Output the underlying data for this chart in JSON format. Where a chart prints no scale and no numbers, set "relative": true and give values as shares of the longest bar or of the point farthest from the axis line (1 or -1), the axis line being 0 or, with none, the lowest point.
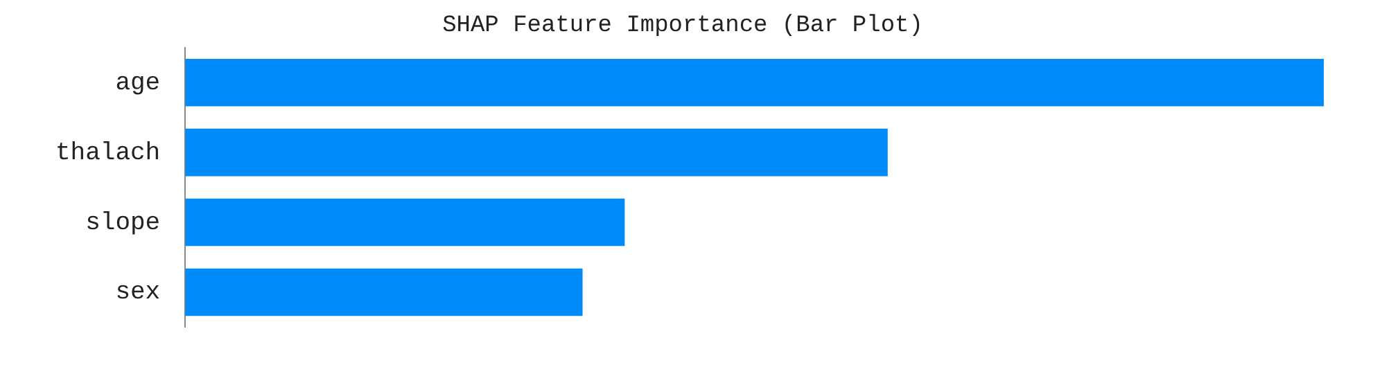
{
  "chart_data": {
    "type": "bar",
    "title": "SHAP Feature Importance (Bar Plot)",
    "orientation": "horizontal",
    "relative": true,
    "categories": [
      "age",
      "thalach",
      "slope",
      "sex"
    ],
    "values": [
      1,
      0.617,
      0.386,
      0.349
    ],
    "color": "#008bfb",
    "legend": false
  }
}
